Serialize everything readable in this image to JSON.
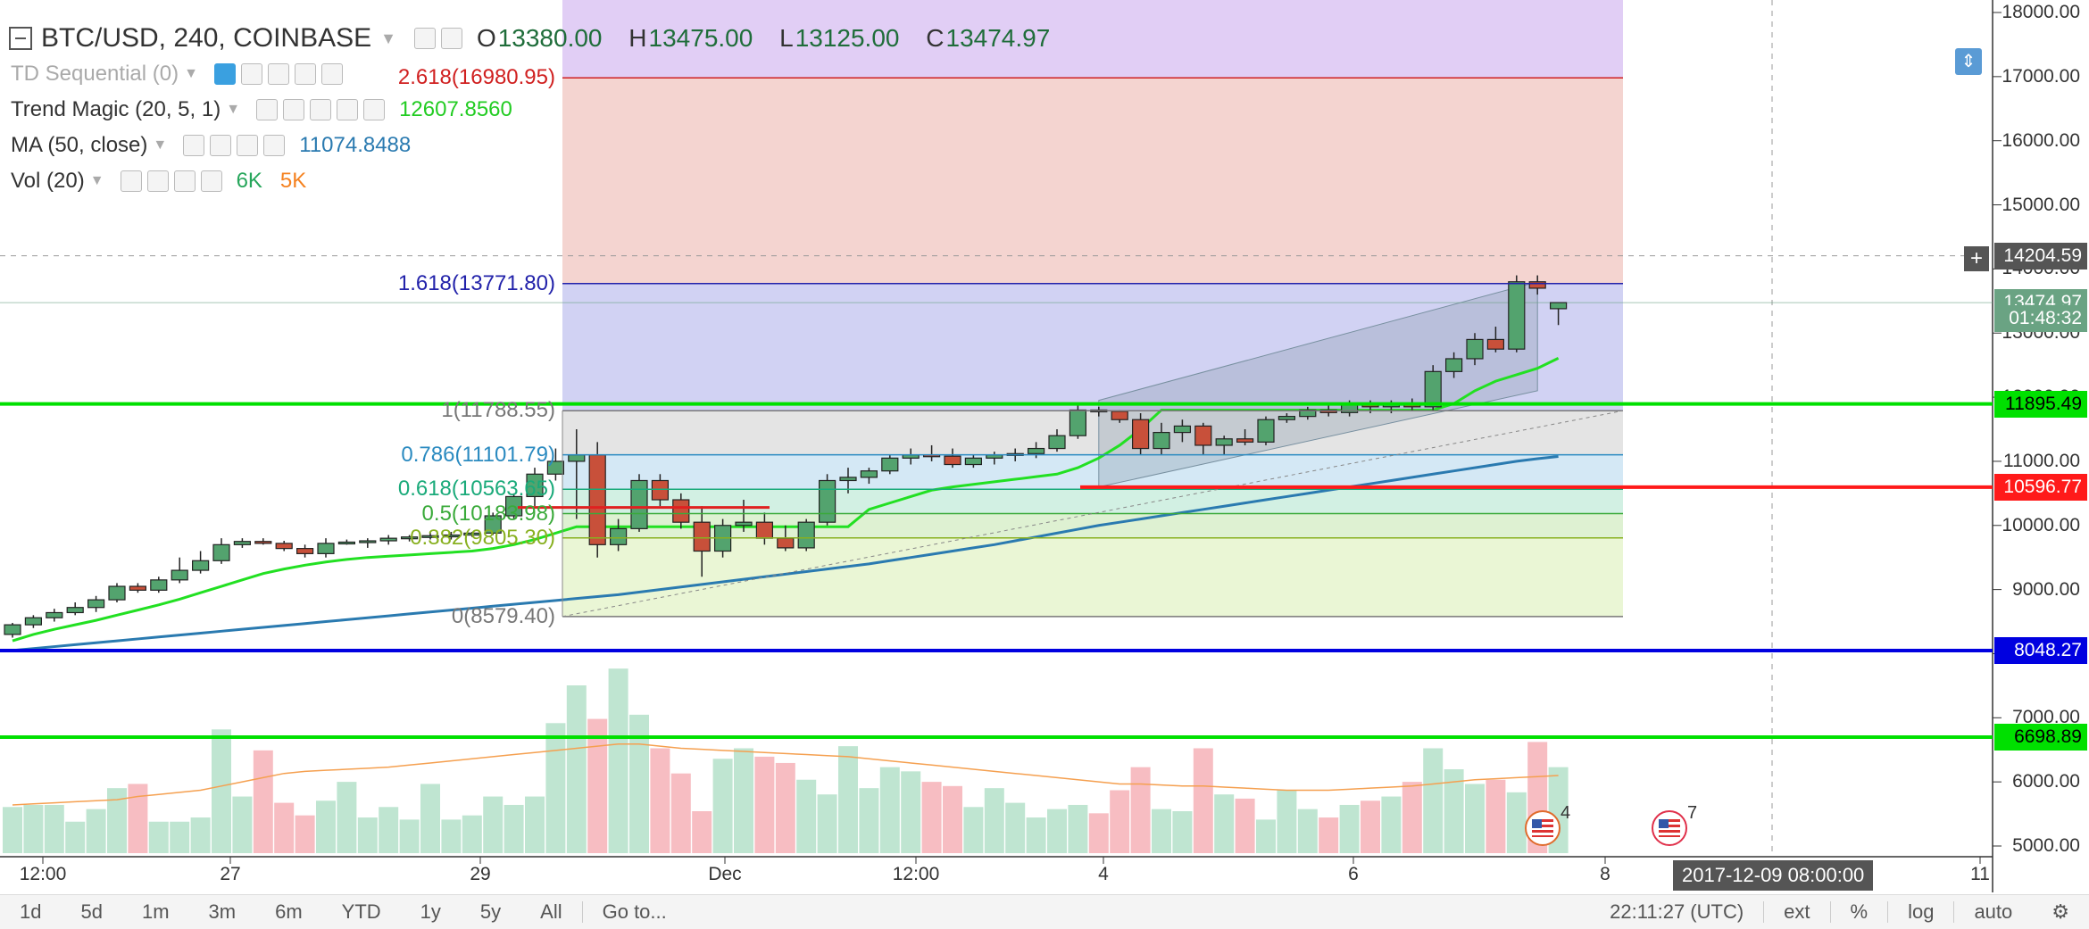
{
  "header": {
    "symbol": "BTC/USD, 240, COINBASE",
    "open_label": "O",
    "open": "13380.00",
    "high_label": "H",
    "high": "13475.00",
    "low_label": "L",
    "low": "13125.00",
    "close_label": "C",
    "close": "13474.97"
  },
  "indicators": [
    {
      "name": "TD Sequential (0)",
      "values": [],
      "color": "#aaaaaa"
    },
    {
      "name": "Trend Magic (20, 5, 1)",
      "values": [
        "12607.8560"
      ],
      "colors": [
        "#22cc22"
      ]
    },
    {
      "name": "MA (50, close)",
      "values": [
        "11074.8488"
      ],
      "colors": [
        "#2a7ab0"
      ]
    },
    {
      "name": "Vol (20)",
      "values": [
        "6K",
        "5K"
      ],
      "colors": [
        "#26a65b",
        "#f58220"
      ]
    }
  ],
  "price_labels": [
    "18000.00",
    "17000.00",
    "16000.00",
    "15000.00",
    "14000.00",
    "13000.00",
    "12000.00",
    "11000.00",
    "10000.00",
    "9000.00",
    "8000.00",
    "7000.00",
    "6000.00",
    "5000.00"
  ],
  "price_tags": [
    {
      "label": "14204.59",
      "value": 14204.59,
      "bg": "#555555"
    },
    {
      "label": "13474.97",
      "value": 13474.97,
      "bg": "#6aa383"
    },
    {
      "label": "01:48:32",
      "value": 13230,
      "bg": "#6aa383"
    },
    {
      "label": "11895.49",
      "value": 11895.49,
      "bg": "#00e000",
      "fg": "#000000"
    },
    {
      "label": "10596.77",
      "value": 10596.77,
      "bg": "#ff1a1a"
    },
    {
      "label": "8048.27",
      "value": 8048.27,
      "bg": "#0000e0"
    },
    {
      "label": "6698.89",
      "value": 6698.89,
      "bg": "#00e000",
      "fg": "#000000"
    }
  ],
  "fib_levels": [
    {
      "label": "2.618(16980.95)",
      "value": 16980.95,
      "color": "#d02020"
    },
    {
      "label": "1.618(13771.80)",
      "value": 13771.8,
      "color": "#2222aa"
    },
    {
      "label": "1(11788.55)",
      "value": 11788.55,
      "color": "#777777"
    },
    {
      "label": "0.786(11101.79)",
      "value": 11101.79,
      "color": "#2a8ac0"
    },
    {
      "label": "0.618(10563.65)",
      "value": 10563.65,
      "color": "#1aaa7a"
    },
    {
      "label": "0.5(10183.98)",
      "value": 10183.98,
      "color": "#3aaa3a"
    },
    {
      "label": "0.382(9805.30)",
      "value": 9805.3,
      "color": "#88b020"
    },
    {
      "label": "0(8579.40)",
      "value": 8579.4,
      "color": "#777777"
    }
  ],
  "x_ticks": [
    {
      "label": "12:00"
    },
    {
      "label": "27"
    },
    {
      "label": "29"
    },
    {
      "label": "Dec"
    },
    {
      "label": "12:00"
    },
    {
      "label": "4"
    },
    {
      "label": "6"
    },
    {
      "label": "8"
    },
    {
      "label": "11"
    }
  ],
  "crosshair_time": "2017-12-09 08:00:00",
  "events": [
    {
      "count": "4"
    },
    {
      "count": "7"
    }
  ],
  "bottom_bar": {
    "ranges": [
      "1d",
      "5d",
      "1m",
      "3m",
      "6m",
      "YTD",
      "1y",
      "5y",
      "All"
    ],
    "goto": "Go to...",
    "clock": "22:11:27 (UTC)",
    "toggles": [
      "ext",
      "%",
      "log",
      "auto"
    ]
  },
  "chart_data": {
    "type": "candlestick",
    "title": "BTC/USD, 240, COINBASE",
    "ylim": [
      5000,
      18000
    ],
    "candles": [
      [
        8300,
        8480,
        8250,
        8450
      ],
      [
        8450,
        8600,
        8400,
        8560
      ],
      [
        8560,
        8700,
        8500,
        8640
      ],
      [
        8640,
        8800,
        8600,
        8720
      ],
      [
        8720,
        8900,
        8650,
        8840
      ],
      [
        8840,
        9100,
        8800,
        9050
      ],
      [
        9050,
        9100,
        8950,
        8990
      ],
      [
        8990,
        9200,
        8950,
        9150
      ],
      [
        9150,
        9500,
        9100,
        9300
      ],
      [
        9300,
        9600,
        9250,
        9450
      ],
      [
        9450,
        9800,
        9400,
        9700
      ],
      [
        9700,
        9800,
        9650,
        9750
      ],
      [
        9750,
        9800,
        9700,
        9720
      ],
      [
        9720,
        9760,
        9600,
        9640
      ],
      [
        9640,
        9700,
        9500,
        9560
      ],
      [
        9560,
        9800,
        9500,
        9720
      ],
      [
        9720,
        9780,
        9700,
        9740
      ],
      [
        9740,
        9800,
        9650,
        9760
      ],
      [
        9760,
        9850,
        9700,
        9800
      ],
      [
        9800,
        9850,
        9750,
        9820
      ],
      [
        9820,
        9880,
        9780,
        9840
      ],
      [
        9840,
        9900,
        9780,
        9850
      ],
      [
        9850,
        9900,
        9820,
        9880
      ],
      [
        9880,
        10200,
        9850,
        10150
      ],
      [
        10150,
        10500,
        10100,
        10450
      ],
      [
        10450,
        10900,
        10300,
        10800
      ],
      [
        10800,
        11200,
        10700,
        11000
      ],
      [
        11000,
        11500,
        10100,
        11100
      ],
      [
        11100,
        11300,
        9500,
        9700
      ],
      [
        9700,
        10100,
        9600,
        9950
      ],
      [
        9950,
        10800,
        9900,
        10700
      ],
      [
        10700,
        10800,
        10300,
        10400
      ],
      [
        10400,
        10500,
        9950,
        10050
      ],
      [
        10050,
        10300,
        9200,
        9600
      ],
      [
        9600,
        10100,
        9500,
        10000
      ],
      [
        10000,
        10400,
        9900,
        10050
      ],
      [
        10050,
        10200,
        9700,
        9800
      ],
      [
        9800,
        10000,
        9600,
        9650
      ],
      [
        9650,
        10100,
        9600,
        10050
      ],
      [
        10050,
        10800,
        10000,
        10700
      ],
      [
        10700,
        10900,
        10500,
        10750
      ],
      [
        10750,
        10900,
        10650,
        10850
      ],
      [
        10850,
        11100,
        10800,
        11050
      ],
      [
        11050,
        11200,
        10950,
        11100
      ],
      [
        11100,
        11250,
        11000,
        11080
      ],
      [
        11080,
        11200,
        10900,
        10950
      ],
      [
        10950,
        11100,
        10900,
        11050
      ],
      [
        11050,
        11150,
        10950,
        11100
      ],
      [
        11100,
        11200,
        11000,
        11120
      ],
      [
        11120,
        11300,
        11050,
        11200
      ],
      [
        11200,
        11500,
        11150,
        11400
      ],
      [
        11400,
        11900,
        11350,
        11800
      ],
      [
        11800,
        11850,
        11700,
        11780
      ],
      [
        11780,
        11800,
        11600,
        11650
      ],
      [
        11650,
        11750,
        11100,
        11200
      ],
      [
        11200,
        11600,
        11100,
        11450
      ],
      [
        11450,
        11650,
        11300,
        11550
      ],
      [
        11550,
        11600,
        11100,
        11250
      ],
      [
        11250,
        11400,
        11100,
        11350
      ],
      [
        11350,
        11500,
        11250,
        11300
      ],
      [
        11300,
        11700,
        11250,
        11650
      ],
      [
        11650,
        11750,
        11600,
        11700
      ],
      [
        11700,
        11850,
        11650,
        11800
      ],
      [
        11800,
        11900,
        11700,
        11760
      ],
      [
        11760,
        11950,
        11700,
        11900
      ],
      [
        11900,
        11950,
        11750,
        11850
      ],
      [
        11850,
        11950,
        11750,
        11900
      ],
      [
        11900,
        11980,
        11800,
        11850
      ],
      [
        11850,
        12500,
        11800,
        12400
      ],
      [
        12400,
        12700,
        12300,
        12600
      ],
      [
        12600,
        13000,
        12500,
        12900
      ],
      [
        12900,
        13100,
        12700,
        12750
      ],
      [
        12750,
        13900,
        12700,
        13800
      ],
      [
        13800,
        13900,
        13600,
        13700
      ],
      [
        13380,
        13475,
        13125,
        13474.97
      ]
    ],
    "volume": {
      "ylim": [
        0,
        10000
      ],
      "values": [
        2200,
        2300,
        2300,
        1500,
        2100,
        3100,
        3300,
        1500,
        1500,
        1700,
        5900,
        2700,
        4900,
        2400,
        1800,
        2500,
        3400,
        1700,
        2200,
        1600,
        3300,
        1600,
        1800,
        2700,
        2300,
        2700,
        6200,
        8000,
        6400,
        8800,
        6600,
        5000,
        3800,
        2000,
        4500,
        5000,
        4600,
        4300,
        3500,
        2800,
        5100,
        3100,
        4100,
        3900,
        3400,
        3200,
        2200,
        3100,
        2400,
        1700,
        2100,
        2300,
        1900,
        3000,
        4100,
        2100,
        2000,
        5000,
        2800,
        2600,
        1600,
        3000,
        2100,
        1700,
        2300,
        2500,
        2700,
        3400,
        5000,
        4000,
        3300,
        3500,
        2900,
        5300,
        4100
      ],
      "ma": [
        2300,
        2350,
        2400,
        2450,
        2500,
        2550,
        2700,
        2800,
        2900,
        3000,
        3200,
        3400,
        3600,
        3800,
        3900,
        3950,
        4000,
        4050,
        4100,
        4200,
        4300,
        4400,
        4500,
        4600,
        4700,
        4800,
        4900,
        5000,
        5100,
        5200,
        5200,
        5100,
        5000,
        4950,
        4900,
        4850,
        4800,
        4750,
        4700,
        4650,
        4600,
        4500,
        4400,
        4300,
        4200,
        4100,
        4000,
        3900,
        3800,
        3700,
        3600,
        3500,
        3400,
        3300,
        3300,
        3250,
        3200,
        3200,
        3150,
        3100,
        3050,
        3000,
        3000,
        3000,
        3050,
        3100,
        3150,
        3200,
        3300,
        3400,
        3500,
        3550,
        3600,
        3650,
        3700
      ]
    },
    "trend_magic": [
      8200,
      8300,
      8380,
      8450,
      8520,
      8600,
      8680,
      8760,
      8850,
      8950,
      9050,
      9150,
      9250,
      9320,
      9380,
      9430,
      9470,
      9500,
      9520,
      9540,
      9560,
      9580,
      9600,
      9640,
      9700,
      9780,
      9880,
      9980,
      9980,
      9980,
      9980,
      9980,
      9980,
      9980,
      9980,
      9980,
      9980,
      9980,
      9980,
      9980,
      9980,
      10250,
      10350,
      10450,
      10550,
      10600,
      10640,
      10680,
      10720,
      10760,
      10800,
      10900,
      11050,
      11250,
      11500,
      11800,
      11800,
      11800,
      11800,
      11800,
      11800,
      11800,
      11800,
      11800,
      11800,
      11800,
      11800,
      11800,
      11800,
      11900,
      12100,
      12250,
      12350,
      12450,
      12607.856
    ],
    "ma50": [
      8050,
      8080,
      8110,
      8140,
      8170,
      8200,
      8230,
      8260,
      8290,
      8320,
      8350,
      8380,
      8410,
      8440,
      8470,
      8500,
      8530,
      8560,
      8590,
      8620,
      8650,
      8680,
      8710,
      8740,
      8770,
      8800,
      8830,
      8860,
      8890,
      8920,
      8960,
      9000,
      9040,
      9080,
      9120,
      9160,
      9200,
      9240,
      9280,
      9320,
      9360,
      9400,
      9450,
      9500,
      9550,
      9600,
      9650,
      9700,
      9760,
      9820,
      9880,
      9940,
      10000,
      10050,
      10100,
      10150,
      10200,
      10250,
      10300,
      10350,
      10400,
      10450,
      10500,
      10550,
      10600,
      10650,
      10700,
      10750,
      10800,
      10850,
      10900,
      10950,
      11000,
      11040,
      11074.8488
    ]
  }
}
